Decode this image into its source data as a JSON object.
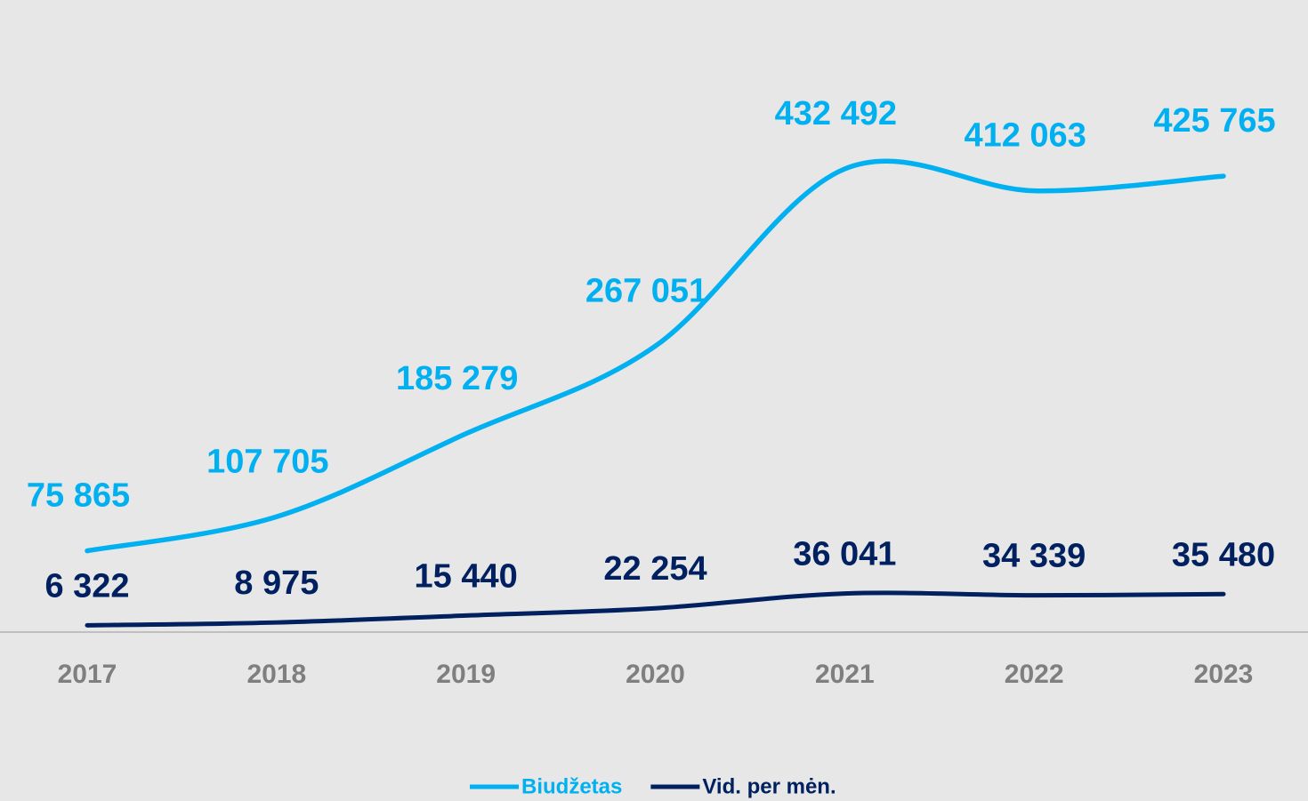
{
  "chart_data": {
    "type": "line",
    "categories": [
      "2017",
      "2018",
      "2019",
      "2020",
      "2021",
      "2022",
      "2023"
    ],
    "series": [
      {
        "name": "Biudžetas",
        "color": "#00b0f0",
        "values": [
          75865,
          107705,
          185279,
          267051,
          432492,
          412063,
          425765
        ],
        "value_labels": [
          "75 865",
          "107 705",
          "185 279",
          "267 051",
          "432 492",
          "412 063",
          "425 765"
        ]
      },
      {
        "name": "Vid. per mėn.",
        "color": "#002060",
        "values": [
          6322,
          8975,
          15440,
          22254,
          36041,
          34339,
          35480
        ],
        "value_labels": [
          "6 322",
          "8 975",
          "15 440",
          "22 254",
          "36 041",
          "34 339",
          "35 480"
        ]
      }
    ],
    "legend": "bottom"
  }
}
